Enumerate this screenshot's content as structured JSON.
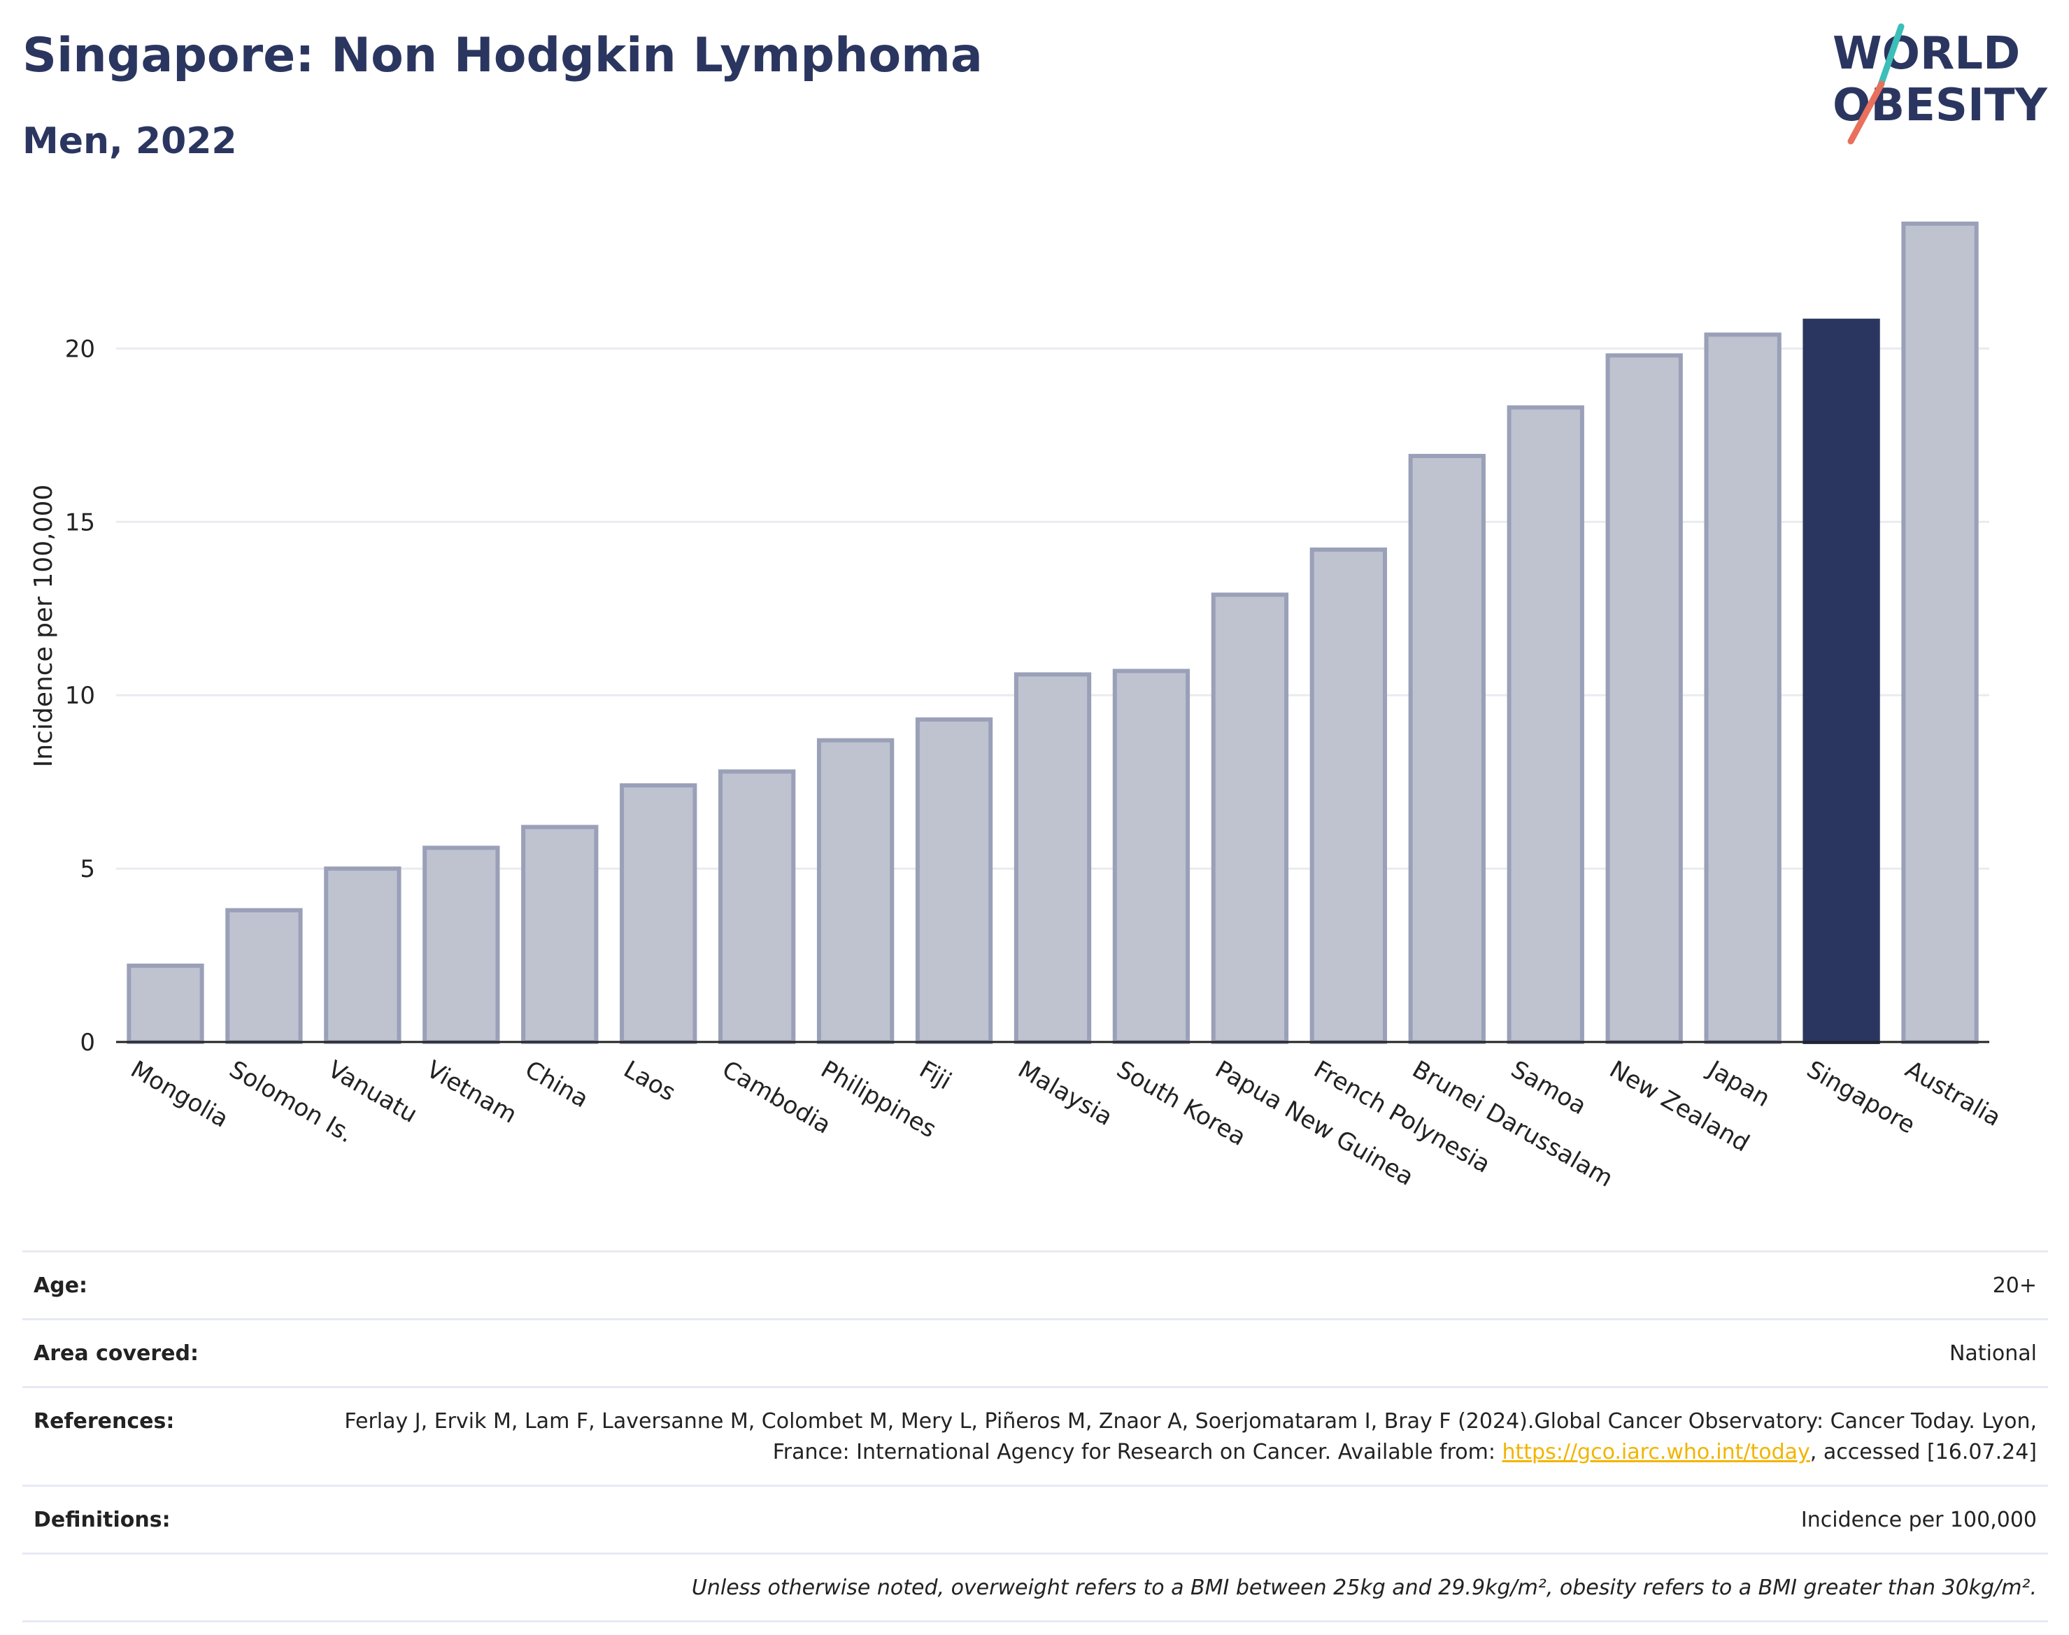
{
  "header": {
    "title": "Singapore: Non Hodgkin Lymphoma",
    "subtitle": "Men, 2022"
  },
  "logo": {
    "line1": "WORLD",
    "line2": "OBESITY",
    "text_color": "#2b3660",
    "slash_colors": [
      "#e8705c",
      "#3bbfb8"
    ]
  },
  "chart_data": {
    "type": "bar",
    "categories": [
      "Mongolia",
      "Solomon Is.",
      "Vanuatu",
      "Vietnam",
      "China",
      "Laos",
      "Cambodia",
      "Philippines",
      "Fiji",
      "Malaysia",
      "South Korea",
      "Papua New Guinea",
      "French Polynesia",
      "Brunei Darussalam",
      "Samoa",
      "New Zealand",
      "Japan",
      "Singapore",
      "Australia"
    ],
    "values": [
      2.2,
      3.8,
      5.0,
      5.6,
      6.2,
      7.4,
      7.8,
      8.7,
      9.3,
      10.6,
      10.7,
      12.9,
      14.2,
      16.9,
      18.3,
      19.8,
      20.4,
      20.8,
      23.6
    ],
    "highlight": "Singapore",
    "ylabel": "Incidence per 100,000",
    "xlabel": "",
    "ylim": [
      0,
      24
    ],
    "yticks": [
      0,
      5,
      10,
      15,
      20
    ],
    "grid": true,
    "colors": {
      "bar_fill": "#bfc3d0",
      "bar_stroke": "#9aa0b8",
      "highlight_fill": "#2b3660",
      "grid": "#e9ebf1",
      "axis": "#222222"
    }
  },
  "details": {
    "age_label": "Age:",
    "age_value": "20+",
    "area_label": "Area covered:",
    "area_value": "National",
    "references_label": "References:",
    "references_text": "Ferlay J, Ervik M, Lam F, Laversanne M, Colombet M, Mery L, Piñeros M, Znaor A, Soerjomataram I, Bray F (2024).Global Cancer Observatory: Cancer Today. Lyon, France: International Agency for Research on Cancer. Available from: ",
    "references_link": "https://gco.iarc.who.int/today",
    "references_suffix": ", accessed [16.07.24]",
    "definitions_label": "Definitions:",
    "definitions_value": "Incidence per 100,000",
    "note": "Unless otherwise noted, overweight refers to a BMI between 25kg and 29.9kg/m², obesity refers to a BMI greater than 30kg/m²."
  }
}
